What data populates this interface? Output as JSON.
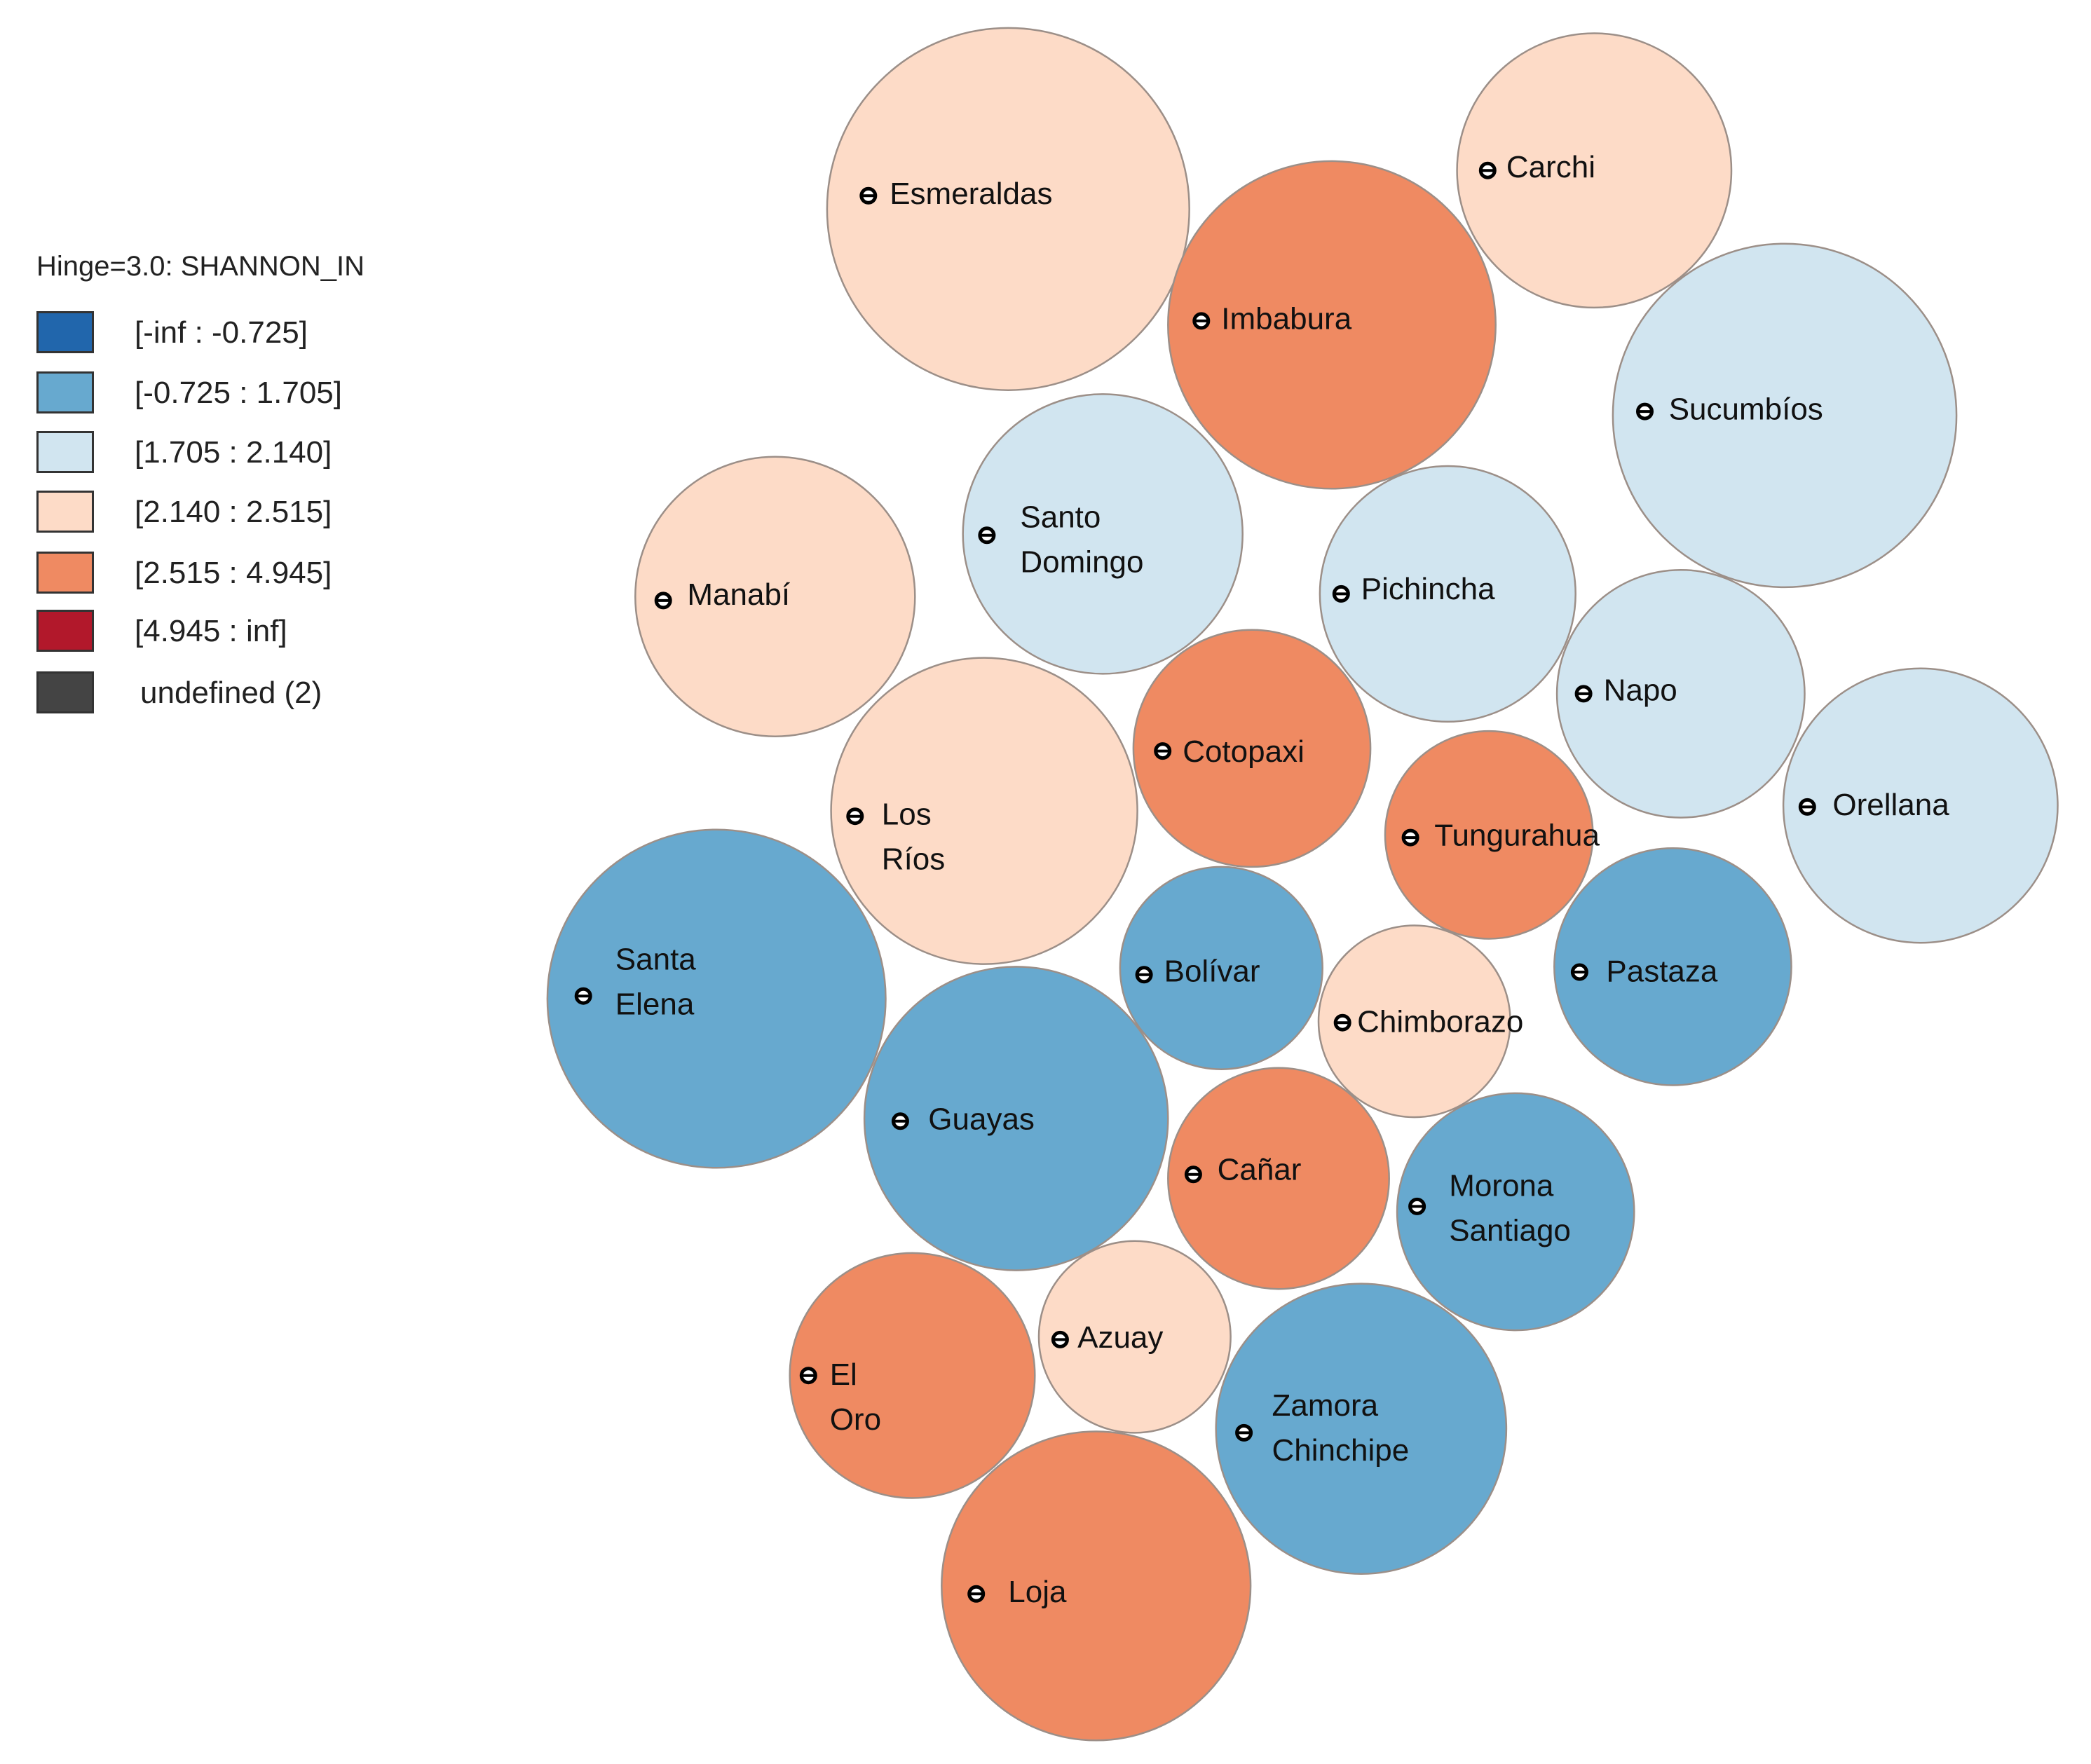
{
  "legend": {
    "title": "Hinge=3.0: SHANNON_IN",
    "items": [
      {
        "label": "[-inf : -0.725]",
        "color": "#2166ac"
      },
      {
        "label": "[-0.725 : 1.705]",
        "color": "#67a9cf"
      },
      {
        "label": "[1.705 : 2.140]",
        "color": "#d1e5f0"
      },
      {
        "label": "[2.140 : 2.515]",
        "color": "#fddbc7"
      },
      {
        "label": "[2.515 : 4.945]",
        "color": "#ef8a62"
      },
      {
        "label": "[4.945 : inf]",
        "color": "#b2182b"
      },
      {
        "label": "undefined (2)",
        "color": "#444444"
      }
    ]
  },
  "provinces": [
    {
      "name": "Esmeraldas",
      "class": 3
    },
    {
      "name": "Carchi",
      "class": 3
    },
    {
      "name": "Imbabura",
      "class": 4
    },
    {
      "name": "Sucumbíos",
      "class": 2
    },
    {
      "name": "Santo Domingo",
      "class": 2
    },
    {
      "name": "Manabí",
      "class": 3
    },
    {
      "name": "Pichincha",
      "class": 2
    },
    {
      "name": "Napo",
      "class": 2
    },
    {
      "name": "Cotopaxi",
      "class": 4
    },
    {
      "name": "Los Ríos",
      "class": 3
    },
    {
      "name": "Orellana",
      "class": 2
    },
    {
      "name": "Tungurahua",
      "class": 4
    },
    {
      "name": "Santa Elena",
      "class": 1
    },
    {
      "name": "Bolívar",
      "class": 1
    },
    {
      "name": "Pastaza",
      "class": 1
    },
    {
      "name": "Chimborazo",
      "class": 3
    },
    {
      "name": "Guayas",
      "class": 1
    },
    {
      "name": "Cañar",
      "class": 4
    },
    {
      "name": "Morona Santiago",
      "class": 1
    },
    {
      "name": "Azuay",
      "class": 3
    },
    {
      "name": "El Oro",
      "class": 4
    },
    {
      "name": "Zamora Chinchipe",
      "class": 1
    },
    {
      "name": "Loja",
      "class": 4
    }
  ]
}
